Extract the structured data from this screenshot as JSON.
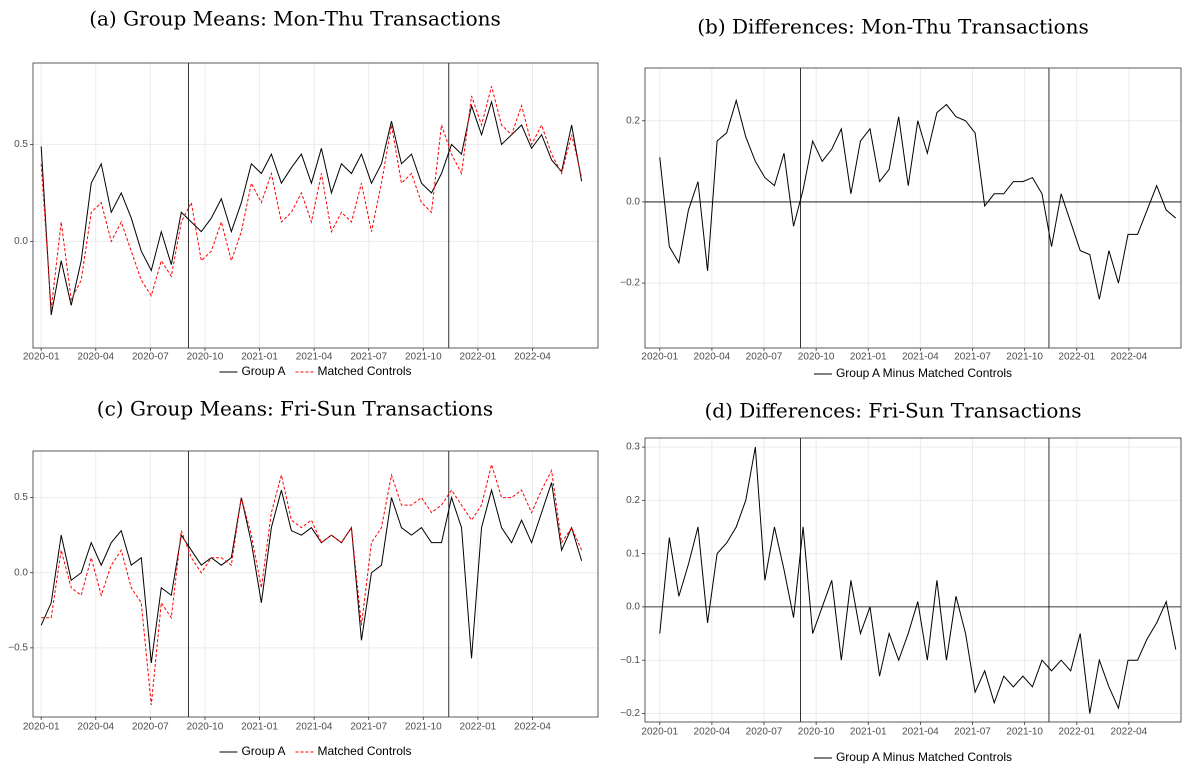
{
  "chart_data": [
    {
      "type": "line",
      "title": "(a) Group Means: Mon-Thu Transactions",
      "x": [
        0,
        0.55,
        1.1,
        1.65,
        2.2,
        2.75,
        3.3,
        3.85,
        4.4,
        4.95,
        5.5,
        6.05,
        6.6,
        7.15,
        7.7,
        8.25,
        8.8,
        9.35,
        9.9,
        10.45,
        11,
        11.55,
        12.1,
        12.65,
        13.2,
        13.75,
        14.3,
        14.85,
        15.4,
        15.95,
        16.5,
        17.05,
        17.6,
        18.15,
        18.7,
        19.25,
        19.8,
        20.35,
        20.9,
        21.45,
        22,
        22.55,
        23.1,
        23.65,
        24.2,
        24.75,
        25.3,
        25.85,
        26.4,
        26.95,
        27.5,
        28.05,
        28.6,
        29.15,
        29.7
      ],
      "series": [
        {
          "name": "Group A",
          "color": "#000000",
          "dash": false,
          "values": [
            0.49,
            -0.38,
            -0.1,
            -0.33,
            -0.1,
            0.3,
            0.4,
            0.15,
            0.25,
            0.12,
            -0.05,
            -0.15,
            0.05,
            -0.12,
            0.15,
            0.1,
            0.05,
            0.12,
            0.22,
            0.05,
            0.2,
            0.4,
            0.35,
            0.45,
            0.3,
            0.38,
            0.45,
            0.3,
            0.48,
            0.25,
            0.4,
            0.35,
            0.45,
            0.3,
            0.4,
            0.62,
            0.4,
            0.45,
            0.3,
            0.25,
            0.35,
            0.5,
            0.45,
            0.7,
            0.55,
            0.72,
            0.5,
            0.55,
            0.6,
            0.48,
            0.55,
            0.42,
            0.36,
            0.6,
            0.31
          ]
        },
        {
          "name": "Matched Controls",
          "color": "#ff0000",
          "dash": true,
          "values": [
            0.4,
            -0.35,
            0.1,
            -0.3,
            -0.2,
            0.15,
            0.2,
            0.0,
            0.1,
            -0.05,
            -0.2,
            -0.28,
            -0.1,
            -0.18,
            0.1,
            0.2,
            -0.1,
            -0.05,
            0.1,
            -0.1,
            0.05,
            0.3,
            0.2,
            0.35,
            0.1,
            0.15,
            0.25,
            0.1,
            0.35,
            0.05,
            0.15,
            0.1,
            0.3,
            0.05,
            0.3,
            0.6,
            0.3,
            0.35,
            0.2,
            0.15,
            0.6,
            0.45,
            0.35,
            0.75,
            0.6,
            0.8,
            0.6,
            0.55,
            0.7,
            0.5,
            0.6,
            0.45,
            0.35,
            0.55,
            0.33
          ]
        }
      ],
      "xlim": [
        -0.45,
        30.6
      ],
      "ylim": [
        -0.55,
        0.92
      ],
      "xticks": [
        {
          "value": 0,
          "label": "2020-01"
        },
        {
          "value": 3,
          "label": "2020-04"
        },
        {
          "value": 6,
          "label": "2020-07"
        },
        {
          "value": 9,
          "label": "2020-10"
        },
        {
          "value": 12,
          "label": "2021-01"
        },
        {
          "value": 15,
          "label": "2021-04"
        },
        {
          "value": 18,
          "label": "2021-07"
        },
        {
          "value": 21,
          "label": "2021-10"
        },
        {
          "value": 24,
          "label": "2022-01"
        },
        {
          "value": 27,
          "label": "2022-04"
        }
      ],
      "yticks": [
        {
          "value": 0,
          "label": "0.0"
        },
        {
          "value": 0.5,
          "label": "0.5"
        }
      ],
      "vlines": [
        8.1,
        22.4
      ],
      "grid": true,
      "legend": "bottom"
    },
    {
      "type": "line",
      "title": "(b) Differences: Mon-Thu Transactions",
      "x": [
        0,
        0.55,
        1.1,
        1.65,
        2.2,
        2.75,
        3.3,
        3.85,
        4.4,
        4.95,
        5.5,
        6.05,
        6.6,
        7.15,
        7.7,
        8.25,
        8.8,
        9.35,
        9.9,
        10.45,
        11,
        11.55,
        12.1,
        12.65,
        13.2,
        13.75,
        14.3,
        14.85,
        15.4,
        15.95,
        16.5,
        17.05,
        17.6,
        18.15,
        18.7,
        19.25,
        19.8,
        20.35,
        20.9,
        21.45,
        22,
        22.55,
        23.1,
        23.65,
        24.2,
        24.75,
        25.3,
        25.85,
        26.4,
        26.95,
        27.5,
        28.05,
        28.6,
        29.15,
        29.7
      ],
      "series": [
        {
          "name": "Group A Minus Matched Controls",
          "color": "#000000",
          "dash": false,
          "values": [
            0.11,
            -0.11,
            -0.15,
            -0.02,
            0.05,
            -0.17,
            0.15,
            0.17,
            0.25,
            0.16,
            0.1,
            0.06,
            0.04,
            0.12,
            -0.06,
            0.03,
            0.15,
            0.1,
            0.13,
            0.18,
            0.02,
            0.15,
            0.18,
            0.05,
            0.08,
            0.21,
            0.04,
            0.2,
            0.12,
            0.22,
            0.24,
            0.21,
            0.2,
            0.17,
            -0.01,
            0.02,
            0.02,
            0.05,
            0.05,
            0.06,
            0.02,
            -0.11,
            0.02,
            -0.05,
            -0.12,
            -0.13,
            -0.24,
            -0.12,
            -0.2,
            -0.08,
            -0.08,
            -0.02,
            0.04,
            -0.02,
            -0.04
          ]
        }
      ],
      "xlim": [
        -0.85,
        30.0
      ],
      "ylim": [
        -0.36,
        0.33
      ],
      "xticks": [
        {
          "value": 0,
          "label": "2020-01"
        },
        {
          "value": 3,
          "label": "2020-04"
        },
        {
          "value": 6,
          "label": "2020-07"
        },
        {
          "value": 9,
          "label": "2020-10"
        },
        {
          "value": 12,
          "label": "2021-01"
        },
        {
          "value": 15,
          "label": "2021-04"
        },
        {
          "value": 18,
          "label": "2021-07"
        },
        {
          "value": 21,
          "label": "2021-10"
        },
        {
          "value": 24,
          "label": "2022-01"
        },
        {
          "value": 27,
          "label": "2022-04"
        }
      ],
      "yticks": [
        {
          "value": -0.2,
          "label": "−0.2"
        },
        {
          "value": 0,
          "label": "0.0"
        },
        {
          "value": 0.2,
          "label": "0.2"
        }
      ],
      "vlines": [
        8.1,
        22.4
      ],
      "hline": 0,
      "grid": true,
      "legend": "bottom"
    },
    {
      "type": "line",
      "title": "(c) Group Means: Fri-Sun Transactions",
      "x": [
        0,
        0.55,
        1.1,
        1.65,
        2.2,
        2.75,
        3.3,
        3.85,
        4.4,
        4.95,
        5.5,
        6.05,
        6.6,
        7.15,
        7.7,
        8.25,
        8.8,
        9.35,
        9.9,
        10.45,
        11,
        11.55,
        12.1,
        12.65,
        13.2,
        13.75,
        14.3,
        14.85,
        15.4,
        15.95,
        16.5,
        17.05,
        17.6,
        18.15,
        18.7,
        19.25,
        19.8,
        20.35,
        20.9,
        21.45,
        22,
        22.55,
        23.1,
        23.65,
        24.2,
        24.75,
        25.3,
        25.85,
        26.4,
        26.95,
        27.5,
        28.05,
        28.6,
        29.15,
        29.7
      ],
      "series": [
        {
          "name": "Group A",
          "color": "#000000",
          "dash": false,
          "values": [
            -0.35,
            -0.2,
            0.25,
            -0.05,
            0.0,
            0.2,
            0.05,
            0.2,
            0.28,
            0.05,
            0.1,
            -0.6,
            -0.1,
            -0.15,
            0.25,
            0.15,
            0.05,
            0.1,
            0.05,
            0.1,
            0.5,
            0.2,
            -0.2,
            0.3,
            0.55,
            0.28,
            0.25,
            0.3,
            0.2,
            0.25,
            0.2,
            0.3,
            -0.45,
            0.0,
            0.05,
            0.5,
            0.3,
            0.25,
            0.3,
            0.2,
            0.2,
            0.5,
            0.3,
            -0.57,
            0.3,
            0.55,
            0.3,
            0.2,
            0.35,
            0.2,
            0.4,
            0.6,
            0.15,
            0.3,
            0.08
          ]
        },
        {
          "name": "Matched Controls",
          "color": "#ff0000",
          "dash": true,
          "values": [
            -0.3,
            -0.3,
            0.15,
            -0.1,
            -0.15,
            0.1,
            -0.15,
            0.05,
            0.15,
            -0.1,
            -0.2,
            -0.88,
            -0.2,
            -0.3,
            0.28,
            0.1,
            0.0,
            0.1,
            0.1,
            0.05,
            0.5,
            0.25,
            -0.1,
            0.4,
            0.65,
            0.35,
            0.3,
            0.35,
            0.2,
            0.25,
            0.2,
            0.3,
            -0.35,
            0.2,
            0.3,
            0.65,
            0.45,
            0.45,
            0.5,
            0.4,
            0.45,
            0.55,
            0.45,
            0.35,
            0.45,
            0.72,
            0.5,
            0.5,
            0.55,
            0.4,
            0.55,
            0.68,
            0.2,
            0.3,
            0.15
          ]
        }
      ],
      "xlim": [
        -0.45,
        30.6
      ],
      "ylim": [
        -0.96,
        0.81
      ],
      "xticks": [
        {
          "value": 0,
          "label": "2020-01"
        },
        {
          "value": 3,
          "label": "2020-04"
        },
        {
          "value": 6,
          "label": "2020-07"
        },
        {
          "value": 9,
          "label": "2020-10"
        },
        {
          "value": 12,
          "label": "2021-01"
        },
        {
          "value": 15,
          "label": "2021-04"
        },
        {
          "value": 18,
          "label": "2021-07"
        },
        {
          "value": 21,
          "label": "2021-10"
        },
        {
          "value": 24,
          "label": "2022-01"
        },
        {
          "value": 27,
          "label": "2022-04"
        }
      ],
      "yticks": [
        {
          "value": -0.5,
          "label": "−0.5"
        },
        {
          "value": 0,
          "label": "0.0"
        },
        {
          "value": 0.5,
          "label": "0.5"
        }
      ],
      "vlines": [
        8.1,
        22.4
      ],
      "grid": true,
      "legend": "bottom"
    },
    {
      "type": "line",
      "title": "(d) Differences: Fri-Sun Transactions",
      "x": [
        0,
        0.55,
        1.1,
        1.65,
        2.2,
        2.75,
        3.3,
        3.85,
        4.4,
        4.95,
        5.5,
        6.05,
        6.6,
        7.15,
        7.7,
        8.25,
        8.8,
        9.35,
        9.9,
        10.45,
        11,
        11.55,
        12.1,
        12.65,
        13.2,
        13.75,
        14.3,
        14.85,
        15.4,
        15.95,
        16.5,
        17.05,
        17.6,
        18.15,
        18.7,
        19.25,
        19.8,
        20.35,
        20.9,
        21.45,
        22,
        22.55,
        23.1,
        23.65,
        24.2,
        24.75,
        25.3,
        25.85,
        26.4,
        26.95,
        27.5,
        28.05,
        28.6,
        29.15,
        29.7
      ],
      "series": [
        {
          "name": "Group A Minus Matched Controls",
          "color": "#000000",
          "dash": false,
          "values": [
            -0.05,
            0.13,
            0.02,
            0.08,
            0.15,
            -0.03,
            0.1,
            0.12,
            0.15,
            0.2,
            0.3,
            0.05,
            0.15,
            0.07,
            -0.02,
            0.15,
            -0.05,
            0.0,
            0.05,
            -0.1,
            0.05,
            -0.05,
            0.0,
            -0.13,
            -0.05,
            -0.1,
            -0.05,
            0.01,
            -0.1,
            0.05,
            -0.1,
            0.02,
            -0.05,
            -0.16,
            -0.12,
            -0.18,
            -0.13,
            -0.15,
            -0.13,
            -0.15,
            -0.1,
            -0.12,
            -0.1,
            -0.12,
            -0.05,
            -0.2,
            -0.1,
            -0.15,
            -0.19,
            -0.1,
            -0.1,
            -0.06,
            -0.03,
            0.01,
            -0.08
          ]
        }
      ],
      "xlim": [
        -0.85,
        30.0
      ],
      "ylim": [
        -0.216,
        0.317
      ],
      "xticks": [
        {
          "value": 0,
          "label": "2020-01"
        },
        {
          "value": 3,
          "label": "2020-04"
        },
        {
          "value": 6,
          "label": "2020-07"
        },
        {
          "value": 9,
          "label": "2020-10"
        },
        {
          "value": 12,
          "label": "2021-01"
        },
        {
          "value": 15,
          "label": "2021-04"
        },
        {
          "value": 18,
          "label": "2021-07"
        },
        {
          "value": 21,
          "label": "2021-10"
        },
        {
          "value": 24,
          "label": "2022-01"
        },
        {
          "value": 27,
          "label": "2022-04"
        }
      ],
      "yticks": [
        {
          "value": -0.2,
          "label": "−0.2"
        },
        {
          "value": -0.1,
          "label": "−0.1"
        },
        {
          "value": 0,
          "label": "0.0"
        },
        {
          "value": 0.1,
          "label": "0.1"
        },
        {
          "value": 0.2,
          "label": "0.2"
        },
        {
          "value": 0.3,
          "label": "0.3"
        }
      ],
      "vlines": [
        8.1,
        22.4
      ],
      "hline": 0,
      "grid": true,
      "legend": "bottom"
    }
  ]
}
